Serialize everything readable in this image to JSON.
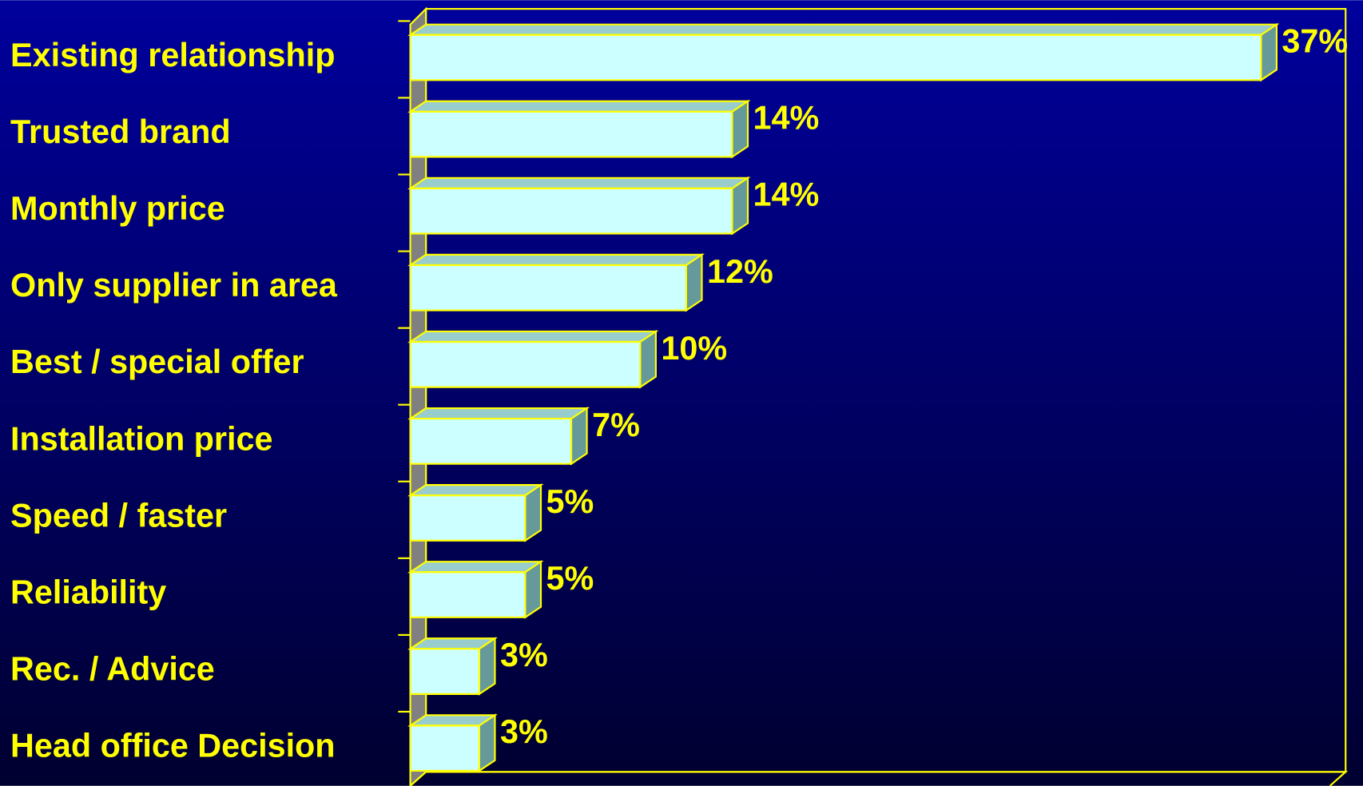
{
  "chart_data": {
    "type": "bar",
    "orientation": "horizontal",
    "categories": [
      "Existing relationship",
      "Trusted brand",
      "Monthly price",
      "Only supplier in area",
      "Best / special offer",
      "Installation price",
      "Speed / faster",
      "Reliability",
      "Rec. / Advice",
      "Head office Decision"
    ],
    "values": [
      37,
      14,
      14,
      12,
      10,
      7,
      5,
      5,
      3,
      3
    ],
    "value_labels": [
      "37%",
      "14%",
      "14%",
      "12%",
      "10%",
      "7%",
      "5%",
      "5%",
      "3%",
      "3%"
    ],
    "color": "#ccffff",
    "xlim": [
      0,
      40
    ]
  }
}
